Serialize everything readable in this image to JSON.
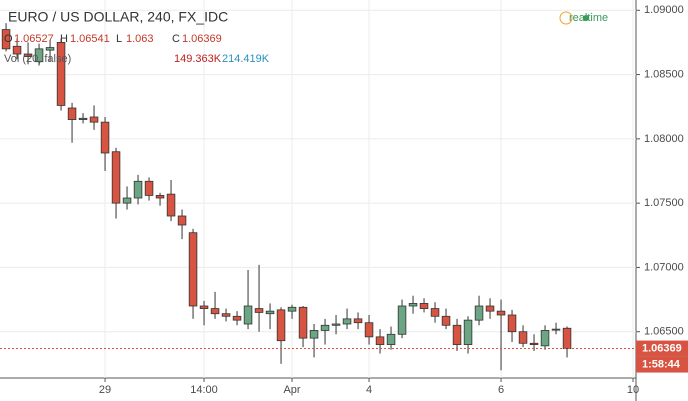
{
  "chart_data": {
    "type": "candlestick",
    "title": "EURO / US DOLLAR, 240, FX_IDC",
    "ohlc_labels": [
      "O",
      "H",
      "L",
      "C"
    ],
    "volume_label": "Vol (20, false)",
    "volume_values": [
      "149.363K",
      "214.419K"
    ],
    "status": "realtime",
    "countdown": "1:58:44",
    "x": [
      0,
      1,
      2,
      3,
      4,
      5,
      6,
      7,
      8,
      9,
      10,
      11,
      12,
      13,
      14,
      15,
      16,
      17,
      18,
      19,
      20,
      21,
      22,
      23,
      24,
      25,
      26,
      27,
      28,
      29,
      30,
      31,
      32,
      33,
      34,
      35,
      36,
      37,
      38,
      39,
      40,
      41,
      42,
      43,
      44,
      45,
      46,
      47,
      48,
      49,
      50,
      51
    ],
    "open": [
      1.0885,
      1.0872,
      1.0866,
      1.086,
      1.0869,
      1.0875,
      1.0824,
      1.0815,
      1.0817,
      1.0813,
      1.079,
      1.075,
      1.0754,
      1.0767,
      1.0756,
      1.0757,
      1.074,
      1.0727,
      1.067,
      1.0668,
      1.0664,
      1.0662,
      1.0656,
      1.0668,
      1.0664,
      1.0667,
      1.0666,
      1.0669,
      1.0645,
      1.0651,
      1.0655,
      1.0656,
      1.066,
      1.0657,
      1.0646,
      1.064,
      1.0648,
      1.067,
      1.0672,
      1.0668,
      1.0662,
      1.0655,
      1.064,
      1.0659,
      1.067,
      1.0666,
      1.0663,
      1.065,
      1.0641,
      1.0639,
      1.0652,
      1.06527
    ],
    "high": [
      1.089,
      1.0878,
      1.0875,
      1.0874,
      1.0877,
      1.0878,
      1.0828,
      1.082,
      1.0826,
      1.0817,
      1.0793,
      1.0763,
      1.0772,
      1.077,
      1.0758,
      1.0768,
      1.0745,
      1.073,
      1.0674,
      1.0681,
      1.0668,
      1.0666,
      1.0698,
      1.0702,
      1.0672,
      1.0669,
      1.0671,
      1.067,
      1.0656,
      1.066,
      1.0663,
      1.0668,
      1.0665,
      1.0663,
      1.0652,
      1.0654,
      1.0675,
      1.0678,
      1.0676,
      1.0673,
      1.0668,
      1.066,
      1.0662,
      1.0678,
      1.0676,
      1.0675,
      1.0667,
      1.0655,
      1.0648,
      1.0655,
      1.0657,
      1.06541
    ],
    "low": [
      1.0868,
      1.0862,
      1.0858,
      1.0857,
      1.086,
      1.0822,
      1.0797,
      1.0812,
      1.0807,
      1.0775,
      1.0738,
      1.0745,
      1.0749,
      1.0752,
      1.0748,
      1.0736,
      1.0722,
      1.066,
      1.0655,
      1.066,
      1.0658,
      1.0655,
      1.0652,
      1.065,
      1.0652,
      1.0625,
      1.066,
      1.0638,
      1.063,
      1.064,
      1.0648,
      1.0652,
      1.0652,
      1.064,
      1.0633,
      1.0636,
      1.0645,
      1.0664,
      1.0665,
      1.0657,
      1.0652,
      1.0635,
      1.0633,
      1.0655,
      1.066,
      1.062,
      1.0642,
      1.0638,
      1.0635,
      1.0636,
      1.0648,
      1.063
    ],
    "close": [
      1.087,
      1.0866,
      1.0864,
      1.087,
      1.0871,
      1.0826,
      1.0815,
      1.0816,
      1.0813,
      1.0789,
      1.075,
      1.0754,
      1.0767,
      1.0756,
      1.0754,
      1.074,
      1.0733,
      1.067,
      1.0668,
      1.0664,
      1.0662,
      1.0659,
      1.067,
      1.0665,
      1.0666,
      1.0643,
      1.0669,
      1.0645,
      1.0651,
      1.0655,
      1.0656,
      1.066,
      1.0657,
      1.0646,
      1.064,
      1.0648,
      1.067,
      1.0672,
      1.0668,
      1.0662,
      1.0655,
      1.064,
      1.0659,
      1.067,
      1.0666,
      1.0663,
      1.065,
      1.0641,
      1.064,
      1.0651,
      1.0652,
      1.06369
    ],
    "up_color": "#6ba583",
    "down_color": "#d75442",
    "xlim": [
      -0.55,
      57.27
    ],
    "xticks": [
      {
        "value": 9,
        "label": "29"
      },
      {
        "value": 18,
        "label": "14:00"
      },
      {
        "value": 26,
        "label": "Apr"
      },
      {
        "value": 33,
        "label": "4"
      },
      {
        "value": 45,
        "label": "6"
      },
      {
        "value": 57,
        "label": "10"
      }
    ],
    "ylim": [
      1.0614,
      1.0908
    ],
    "yticks": [
      {
        "value": 1.065,
        "label": "1.06500"
      },
      {
        "value": 1.07,
        "label": "1.07000"
      },
      {
        "value": 1.075,
        "label": "1.07500"
      },
      {
        "value": 1.08,
        "label": "1.08000"
      },
      {
        "value": 1.085,
        "label": "1.08500"
      },
      {
        "value": 1.09,
        "label": "1.09000"
      }
    ],
    "grid": true
  }
}
